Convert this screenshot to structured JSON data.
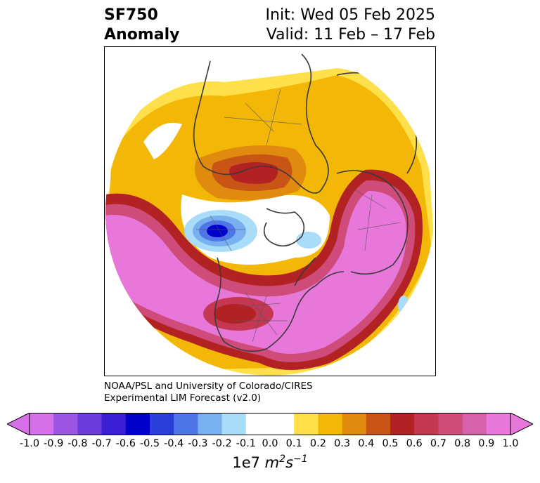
{
  "header": {
    "variable": "SF750",
    "field": "Anomaly",
    "init": "Init: Wed 05 Feb 2025",
    "valid": "Valid: 11 Feb – 17 Feb"
  },
  "credit": {
    "line1": "NOAA/PSL and University of Colorado/CIRES",
    "line2": "Experimental LIM Forecast (v2.0)"
  },
  "colorbar": {
    "ticks": [
      "-1.0",
      "-0.9",
      "-0.8",
      "-0.7",
      "-0.6",
      "-0.5",
      "-0.4",
      "-0.3",
      "-0.2",
      "-0.1",
      "0.0",
      "0.1",
      "0.2",
      "0.3",
      "0.4",
      "0.5",
      "0.6",
      "0.7",
      "0.8",
      "0.9",
      "1.0"
    ],
    "colors": [
      "#d670e8",
      "#9d55e3",
      "#6b3ddc",
      "#3a1fd6",
      "#0000cc",
      "#2a3fd8",
      "#4f76e6",
      "#79b0f0",
      "#a9dcf8",
      "#ffffff",
      "#ffffff",
      "#ffe04a",
      "#f2b707",
      "#e08b0d",
      "#c85416",
      "#b22222",
      "#c43854",
      "#cf4c7a",
      "#d861ac",
      "#e877da"
    ],
    "units_base": "1e7",
    "units_m": "m",
    "units_m_exp": "2",
    "units_s": "s",
    "units_s_exp": "−1"
  }
}
